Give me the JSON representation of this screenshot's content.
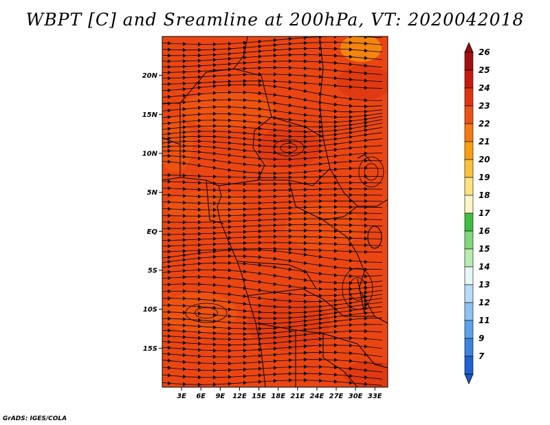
{
  "title": "WBPT [C] and Sreamline at 200hPa, VT: 2020042018",
  "credit": "GrADS: IGES/COLA",
  "map": {
    "lon_range": [
      0,
      35
    ],
    "lat_range": [
      -20,
      25
    ],
    "field_color": "#ea4614",
    "accent_colors": [
      "#f0600e",
      "#dc3412",
      "#f7a00c"
    ],
    "lat_ticks": [
      {
        "value": 20,
        "label": "20N"
      },
      {
        "value": 15,
        "label": "15N"
      },
      {
        "value": 10,
        "label": "10N"
      },
      {
        "value": 5,
        "label": "5N"
      },
      {
        "value": 0,
        "label": "EQ"
      },
      {
        "value": -5,
        "label": "5S"
      },
      {
        "value": -10,
        "label": "10S"
      },
      {
        "value": -15,
        "label": "15S"
      }
    ],
    "lon_ticks": [
      {
        "value": 3,
        "label": "3E"
      },
      {
        "value": 6,
        "label": "6E"
      },
      {
        "value": 9,
        "label": "9E"
      },
      {
        "value": 12,
        "label": "12E"
      },
      {
        "value": 15,
        "label": "15E"
      },
      {
        "value": 18,
        "label": "18E"
      },
      {
        "value": 21,
        "label": "21E"
      },
      {
        "value": 24,
        "label": "24E"
      },
      {
        "value": 27,
        "label": "27E"
      },
      {
        "value": 30,
        "label": "30E"
      },
      {
        "value": 33,
        "label": "33E"
      }
    ]
  },
  "colorbar": {
    "levels": [
      {
        "label": "26",
        "color": "#a50f0f"
      },
      {
        "label": "25",
        "color": "#c81a0c"
      },
      {
        "label": "24",
        "color": "#e2350f"
      },
      {
        "label": "23",
        "color": "#ee5212"
      },
      {
        "label": "22",
        "color": "#f77a10"
      },
      {
        "label": "21",
        "color": "#fa9e0e"
      },
      {
        "label": "20",
        "color": "#fbc13a"
      },
      {
        "label": "19",
        "color": "#fde282"
      },
      {
        "label": "18",
        "color": "#fdf6c4"
      },
      {
        "label": "17",
        "color": "#3fbf3f"
      },
      {
        "label": "16",
        "color": "#7fd97b"
      },
      {
        "label": "15",
        "color": "#b8ecb2"
      },
      {
        "label": "14",
        "color": "#e6f8f6"
      },
      {
        "label": "13",
        "color": "#b9dcf8"
      },
      {
        "label": "12",
        "color": "#8cc2f2"
      },
      {
        "label": "11",
        "color": "#5aa2ea"
      },
      {
        "label": "9",
        "color": "#3a84e0"
      },
      {
        "label": "7",
        "color": "#1f62d2"
      }
    ],
    "low_end_color": "#1a55c8",
    "high_end_color": "#9a0c0c"
  }
}
